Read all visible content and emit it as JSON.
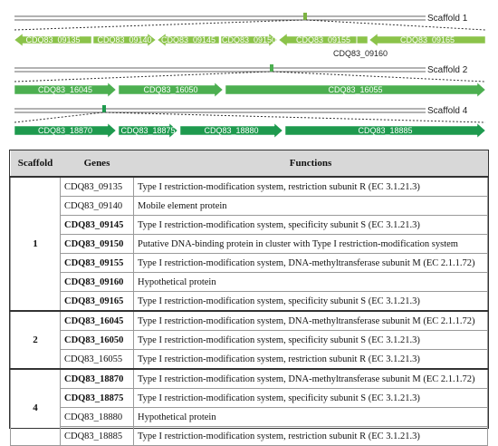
{
  "diagram": {
    "scaffolds": [
      {
        "label": "Scaffold 1",
        "genes": [
          {
            "name": "CDQ83_09135",
            "direction": "left",
            "color": "#8bc34a"
          },
          {
            "name": "CDQ83_09140",
            "direction": "right",
            "color": "#8bc34a"
          },
          {
            "name": "CDQ83_09145",
            "direction": "left",
            "color": "#8bc34a"
          },
          {
            "name": "CDQ83_09150",
            "direction": "right",
            "color": "#8bc34a"
          },
          {
            "name": "CDQ83_09155",
            "direction": "left",
            "color": "#8bc34a"
          },
          {
            "name": "CDQ83_09160",
            "direction": "none",
            "color": "#8bc34a"
          },
          {
            "name": "CDQ83_09165",
            "direction": "left",
            "color": "#8bc34a"
          }
        ],
        "below_label": "CDQ83_09160"
      },
      {
        "label": "Scaffold 2",
        "genes": [
          {
            "name": "CDQ83_16045",
            "direction": "right",
            "color": "#4caf50"
          },
          {
            "name": "CDQ83_16050",
            "direction": "right",
            "color": "#4caf50"
          },
          {
            "name": "CDQ83_16055",
            "direction": "right",
            "color": "#4caf50"
          }
        ]
      },
      {
        "label": "Scaffold 4",
        "genes": [
          {
            "name": "CDQ83_18870",
            "direction": "right",
            "color": "#1e9a4e"
          },
          {
            "name": "CDQ83_18875",
            "direction": "right",
            "color": "#1e9a4e"
          },
          {
            "name": "CDQ83_18880",
            "direction": "right",
            "color": "#1e9a4e"
          },
          {
            "name": "CDQ83_18885",
            "direction": "right",
            "color": "#1e9a4e"
          }
        ]
      }
    ]
  },
  "table": {
    "headers": [
      "Scaffold",
      "Genes",
      "Functions"
    ],
    "groups": [
      {
        "scaffold": "1",
        "rows": [
          {
            "gene": "CDQ83_09135",
            "bold": false,
            "function": "Type I restriction-modification system, restriction subunit R (EC 3.1.21.3)"
          },
          {
            "gene": "CDQ83_09140",
            "bold": false,
            "function": "Mobile element protein"
          },
          {
            "gene": "CDQ83_09145",
            "bold": true,
            "function": "Type I restriction-modification system, specificity subunit S (EC 3.1.21.3)"
          },
          {
            "gene": "CDQ83_09150",
            "bold": true,
            "function": "Putative DNA-binding protein in cluster with Type I restriction-modification system"
          },
          {
            "gene": "CDQ83_09155",
            "bold": true,
            "function": "Type I restriction-modification system, DNA-methyltransferase subunit M (EC 2.1.1.72)"
          },
          {
            "gene": "CDQ83_09160",
            "bold": true,
            "function": "Hypothetical protein"
          },
          {
            "gene": "CDQ83_09165",
            "bold": true,
            "function": "Type I restriction-modification system, specificity subunit S (EC 3.1.21.3)"
          }
        ]
      },
      {
        "scaffold": "2",
        "rows": [
          {
            "gene": "CDQ83_16045",
            "bold": true,
            "function": "Type I restriction-modification system, DNA-methyltransferase subunit M (EC 2.1.1.72)"
          },
          {
            "gene": "CDQ83_16050",
            "bold": true,
            "function": "Type I restriction-modification system, specificity subunit S (EC 3.1.21.3)"
          },
          {
            "gene": "CDQ83_16055",
            "bold": false,
            "function": "Type I restriction-modification system, restriction subunit R (EC 3.1.21.3)"
          }
        ]
      },
      {
        "scaffold": "4",
        "rows": [
          {
            "gene": "CDQ83_18870",
            "bold": true,
            "function": "Type I restriction-modification system, DNA-methyltransferase subunit M (EC 2.1.1.72)"
          },
          {
            "gene": "CDQ83_18875",
            "bold": true,
            "function": "Type I restriction-modification system, specificity subunit S (EC 3.1.21.3)"
          },
          {
            "gene": "CDQ83_18880",
            "bold": false,
            "function": "Hypothetical protein"
          },
          {
            "gene": "CDQ83_18885",
            "bold": false,
            "function": "Type I restriction-modification system, restriction subunit R (EC 3.1.21.3)"
          }
        ]
      }
    ]
  }
}
